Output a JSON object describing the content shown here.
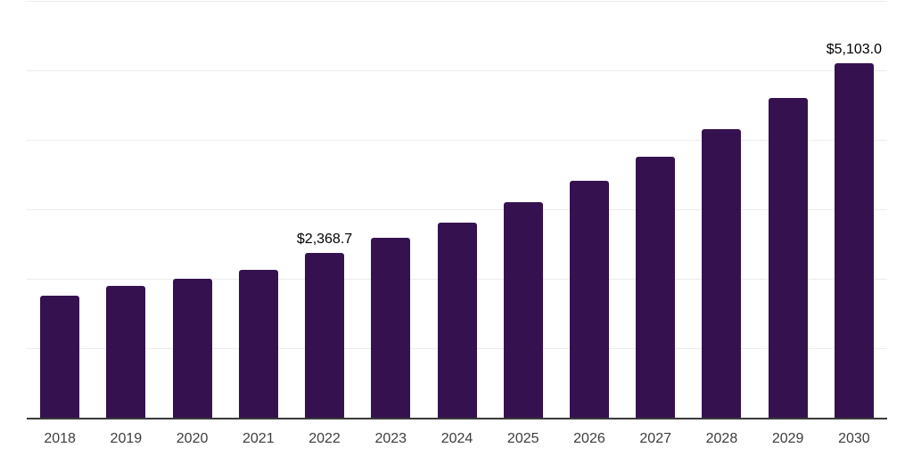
{
  "chart_data": {
    "type": "bar",
    "title": "",
    "categories": [
      "2018",
      "2019",
      "2020",
      "2021",
      "2022",
      "2023",
      "2024",
      "2025",
      "2026",
      "2027",
      "2028",
      "2029",
      "2030"
    ],
    "values": [
      1750,
      1900,
      2005,
      2130,
      2368.7,
      2590,
      2810,
      3100,
      3410,
      3760,
      4150,
      4600,
      5103
    ],
    "data_labels": {
      "2022": "$2,368.7",
      "2030": "$5,103.0"
    },
    "ylim": [
      0,
      6000
    ],
    "gridline_values": [
      1000,
      2000,
      3000,
      4000,
      5000,
      6000
    ],
    "grid": "horizontal-only",
    "legend": "none",
    "y_axis_tick_labels": "none",
    "colors": {
      "bar": "#35124F",
      "gridline": "#ECECEC",
      "axis_line": "#3A3A3A",
      "data_label_text": "#000000",
      "tick_label_text": "#3D3D3D",
      "background": "#FFFFFF"
    }
  }
}
